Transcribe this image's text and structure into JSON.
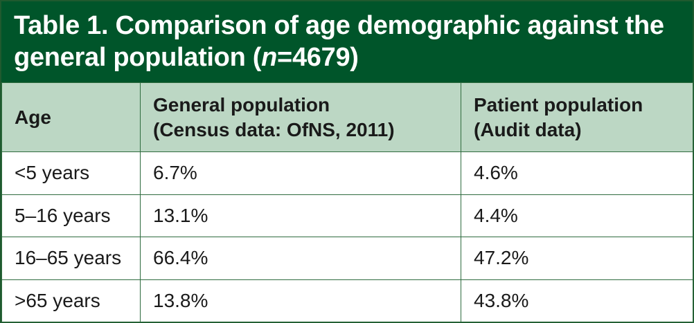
{
  "title": {
    "line1": "Table 1. Comparison of age demographic against the",
    "line2_prefix": "general population (",
    "line2_italic": "n",
    "line2_suffix": "=4679)"
  },
  "table": {
    "headers": [
      {
        "line1": "Age",
        "line2": ""
      },
      {
        "line1": "General population",
        "line2": "(Census data: OfNS, 2011)"
      },
      {
        "line1": "Patient population",
        "line2": "(Audit data)"
      }
    ],
    "rows": [
      [
        "<5 years",
        "6.7%",
        "4.6%"
      ],
      [
        "5–16 years",
        "13.1%",
        "4.4%"
      ],
      [
        "16–65 years",
        "66.4%",
        "47.2%"
      ],
      [
        ">65 years",
        "13.8%",
        "43.8%"
      ]
    ]
  },
  "colors": {
    "title_bg": "#00552a",
    "header_bg": "#bcd7c4",
    "border": "#2e6b3e"
  }
}
